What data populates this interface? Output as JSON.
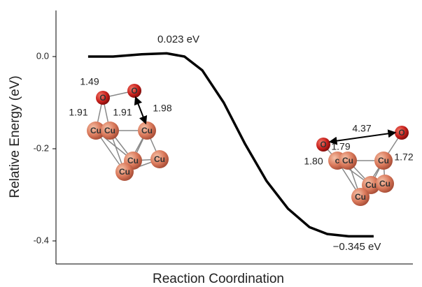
{
  "chart_data": {
    "type": "line",
    "x_label": "Reaction Coordination",
    "y_label": "Relative Energy (eV)",
    "xlim": [
      0,
      10
    ],
    "ylim": [
      -0.45,
      0.1
    ],
    "yticks": [
      {
        "value": 0,
        "label": "0.0"
      },
      -0.2,
      -0.4
    ],
    "x": [
      0.9,
      1.6,
      2.4,
      3.1,
      3.6,
      4.1,
      4.7,
      5.3,
      5.9,
      6.5,
      7.1,
      7.6,
      8.2,
      8.9
    ],
    "series": [
      {
        "color": "#000000",
        "values": [
          0.0,
          0.0,
          0.005,
          0.007,
          0.0,
          -0.03,
          -0.1,
          -0.19,
          -0.27,
          -0.33,
          -0.37,
          -0.385,
          -0.39,
          -0.39
        ]
      }
    ],
    "annotations": [
      "0.023 eV",
      "−0.345 eV"
    ],
    "structures": [
      {
        "atoms": [
          "O",
          "O",
          "Cu",
          "Cu",
          "Cu",
          "Cu",
          "Cu",
          "Cu"
        ],
        "distances": [
          "1.49",
          "1.91",
          "1.91",
          "1.98"
        ]
      },
      {
        "atoms": [
          "O",
          "O",
          "c",
          "Cu",
          "Cu",
          "Cu",
          "Cu",
          "Cu"
        ],
        "distances": [
          "4.37",
          "1.79",
          "1.80",
          "1.72"
        ]
      }
    ]
  }
}
